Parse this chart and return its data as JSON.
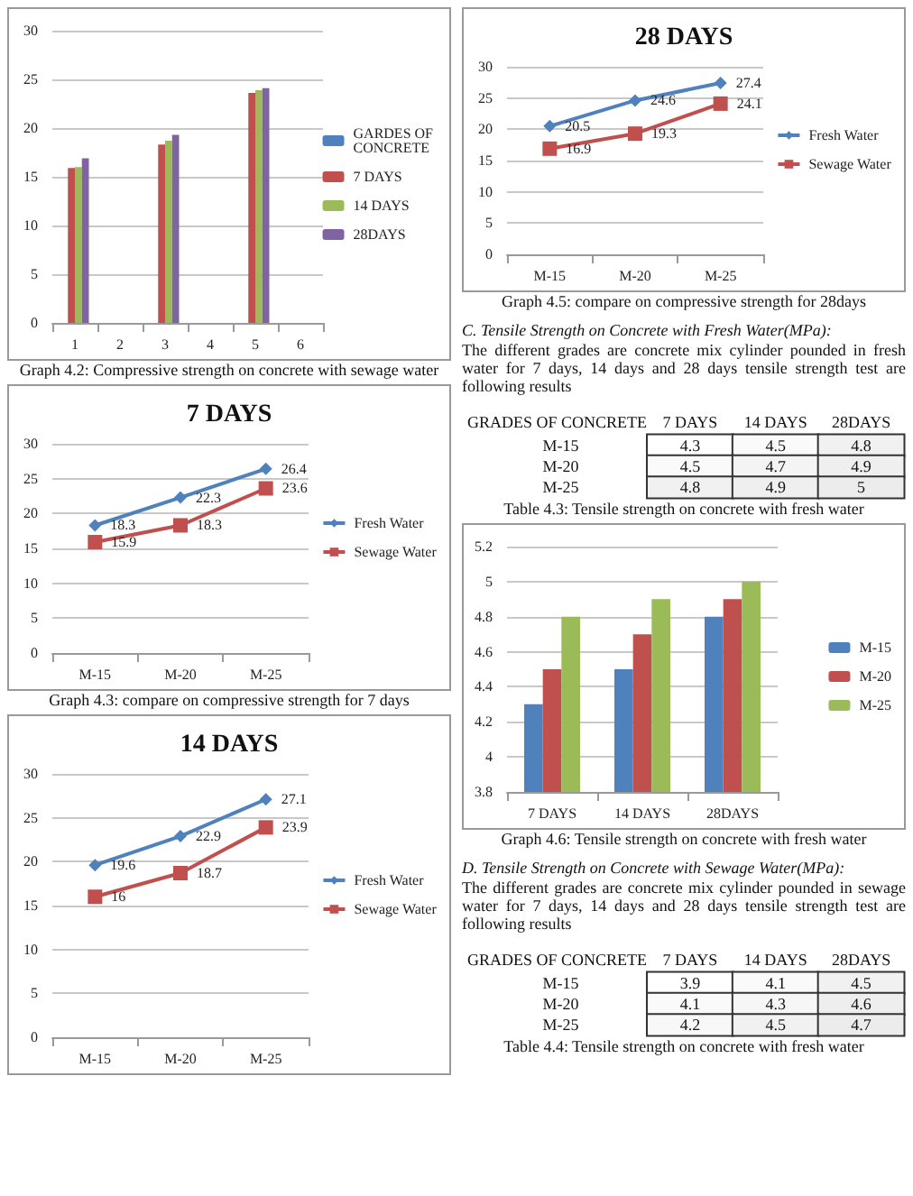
{
  "chart_data": [
    {
      "type": "bar",
      "categories": [
        "1",
        "2",
        "3",
        "4",
        "5",
        "6"
      ],
      "series": [
        {
          "name": "GARDES OF CONCRETE",
          "color": "#4f81bd",
          "values": [
            null,
            null,
            null,
            null,
            null,
            null
          ]
        },
        {
          "name": "7 DAYS",
          "color": "#c0504d",
          "values": [
            15.9,
            null,
            18.3,
            null,
            23.6,
            null
          ]
        },
        {
          "name": "14 DAYS",
          "color": "#9bbb59",
          "values": [
            16,
            null,
            18.7,
            null,
            23.9,
            null
          ]
        },
        {
          "name": "28DAYS",
          "color": "#8064a2",
          "values": [
            16.9,
            null,
            19.3,
            null,
            24.1,
            null
          ]
        }
      ],
      "ylim": [
        0,
        30
      ],
      "yticks": [
        0,
        5,
        10,
        15,
        20,
        25,
        30
      ],
      "grid": "y",
      "legend": "right",
      "annotations": [
        "Graph 4.2: Compressive strength on concrete with sewage water"
      ]
    },
    {
      "type": "line",
      "title": "7 DAYS",
      "categories": [
        "M-15",
        "M-20",
        "M-25"
      ],
      "series": [
        {
          "name": "Fresh Water",
          "color": "#4f81bd",
          "marker": "diamond",
          "values": [
            18.3,
            22.3,
            26.4
          ]
        },
        {
          "name": "Sewage Water",
          "color": "#c0504d",
          "marker": "square",
          "values": [
            15.9,
            18.3,
            23.6
          ]
        }
      ],
      "ylim": [
        0,
        30
      ],
      "yticks": [
        0,
        5,
        10,
        15,
        20,
        25,
        30
      ],
      "grid": "y",
      "legend": "right",
      "data_labels": true,
      "annotations": [
        "Graph 4.3: compare on compressive strength for 7 days"
      ]
    },
    {
      "type": "line",
      "title": "14 DAYS",
      "categories": [
        "M-15",
        "M-20",
        "M-25"
      ],
      "series": [
        {
          "name": "Fresh Water",
          "color": "#4f81bd",
          "marker": "diamond",
          "values": [
            19.6,
            22.9,
            27.1
          ]
        },
        {
          "name": "Sewage Water",
          "color": "#c0504d",
          "marker": "square",
          "values": [
            16,
            18.7,
            23.9
          ]
        }
      ],
      "ylim": [
        0,
        30
      ],
      "yticks": [
        0,
        5,
        10,
        15,
        20,
        25,
        30
      ],
      "grid": "y",
      "legend": "right",
      "data_labels": true
    },
    {
      "type": "line",
      "title": "28 DAYS",
      "categories": [
        "M-15",
        "M-20",
        "M-25"
      ],
      "series": [
        {
          "name": "Fresh Water",
          "color": "#4f81bd",
          "marker": "diamond",
          "values": [
            20.5,
            24.6,
            27.4
          ]
        },
        {
          "name": "Sewage Water",
          "color": "#c0504d",
          "marker": "square",
          "values": [
            16.9,
            19.3,
            24.1
          ]
        }
      ],
      "ylim": [
        0,
        30
      ],
      "yticks": [
        0,
        5,
        10,
        15,
        20,
        25,
        30
      ],
      "grid": "y",
      "legend": "right",
      "data_labels": true,
      "annotations": [
        "Graph 4.5: compare on compressive strength for 28days"
      ]
    },
    {
      "type": "heatmap",
      "title": "C.   Tensile Strength on Concrete with Fresh Water(MPa):",
      "subtitle": "The different grades are concrete mix cylinder pounded in fresh water for 7 days, 14 days and 28 days tensile strength test are following results",
      "ylabel": "GRADES OF CONCRETE",
      "categories": [
        "7 DAYS",
        "14 DAYS",
        "28DAYS"
      ],
      "y_categories": [
        "M-15",
        "M-20",
        "M-25"
      ],
      "cells": [
        [
          4.3,
          4.5,
          4.8
        ],
        [
          4.5,
          4.7,
          4.9
        ],
        [
          4.8,
          4.9,
          5
        ]
      ],
      "cell_labels": [
        [
          "4.3",
          "4.5",
          "4.8"
        ],
        [
          "4.5",
          "4.7",
          "4.9"
        ],
        [
          "4.8",
          "4.9",
          "5"
        ]
      ],
      "annotations": [
        "Table 4.3: Tensile strength on concrete with fresh water"
      ]
    },
    {
      "type": "bar",
      "categories": [
        "7 DAYS",
        "14 DAYS",
        "28DAYS"
      ],
      "series": [
        {
          "name": "M-15",
          "color": "#4f81bd",
          "values": [
            4.3,
            4.5,
            4.8
          ]
        },
        {
          "name": "M-20",
          "color": "#c0504d",
          "values": [
            4.5,
            4.7,
            4.9
          ]
        },
        {
          "name": "M-25",
          "color": "#9bbb59",
          "values": [
            4.8,
            4.9,
            5
          ]
        }
      ],
      "ylim": [
        3.8,
        5.2
      ],
      "yticks": [
        3.8,
        4,
        4.2,
        4.4,
        4.6,
        4.8,
        5,
        5.2
      ],
      "grid": "y",
      "legend": "right",
      "annotations": [
        "Graph 4.6: Tensile strength on concrete with fresh water"
      ]
    },
    {
      "type": "heatmap",
      "title": "D.   Tensile Strength on Concrete with Sewage Water(MPa):",
      "subtitle": "The different grades are concrete mix cylinder pounded in sewage water for 7 days, 14 days and 28 days tensile strength test are following results",
      "ylabel": "GRADES OF CONCRETE",
      "categories": [
        "7 DAYS",
        "14 DAYS",
        "28DAYS"
      ],
      "y_categories": [
        "M-15",
        "M-20",
        "M-25"
      ],
      "cells": [
        [
          3.9,
          4.1,
          4.5
        ],
        [
          4.1,
          4.3,
          4.6
        ],
        [
          4.2,
          4.5,
          4.7
        ]
      ],
      "cell_labels": [
        [
          "3.9",
          "4.1",
          "4.5"
        ],
        [
          "4.1",
          "4.3",
          "4.6"
        ],
        [
          "4.2",
          "4.5",
          "4.7"
        ]
      ],
      "annotations": [
        "Table 4.4: Tensile strength on concrete with fresh water"
      ]
    }
  ]
}
